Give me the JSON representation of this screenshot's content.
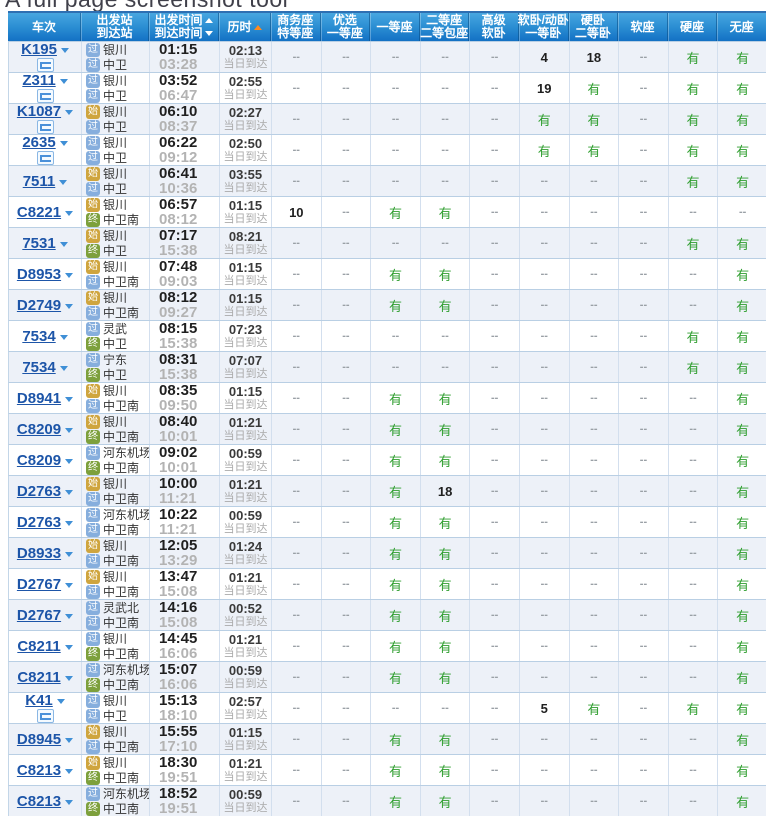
{
  "page_title": "A full page screenshot tool",
  "colors": {
    "header_blue_top": "#47a6e0",
    "header_blue_bottom": "#1371c4",
    "alt_row_bg": "#edf1f8",
    "row_border": "#b9cfe4",
    "train_link": "#1d55a8",
    "available_green": "#2f9e2f",
    "empty_gray": "#9aa0a6",
    "sort_arrow_orange": "#ff8a1e",
    "pass_icon_bg": "#86aedd",
    "origin_icon_bg": "#cfa53e",
    "terminal_icon_bg": "#7da03c"
  },
  "station_icon_legend": {
    "pass": "过",
    "origin": "始",
    "terminal": "终"
  },
  "table": {
    "columns": [
      {
        "key": "train",
        "lines": [
          "车次"
        ]
      },
      {
        "key": "stations",
        "lines": [
          "出发站",
          "到达站"
        ]
      },
      {
        "key": "times",
        "lines": [
          "出发时间",
          "到达时间"
        ],
        "arrows": [
          "up",
          "down"
        ]
      },
      {
        "key": "duration",
        "lines": [
          "历时"
        ],
        "arrows": [
          "up-active"
        ]
      },
      {
        "key": "business_seat",
        "lines": [
          "商务座",
          "特等座"
        ]
      },
      {
        "key": "premium_first_seat",
        "lines": [
          "优选",
          "一等座"
        ]
      },
      {
        "key": "first_seat",
        "lines": [
          "一等座"
        ]
      },
      {
        "key": "second_seat",
        "lines": [
          "二等座",
          "二等包座"
        ]
      },
      {
        "key": "deluxe_soft_sleeper",
        "lines": [
          "高级",
          "软卧"
        ]
      },
      {
        "key": "soft_sleeper",
        "lines": [
          "软卧/动卧",
          "一等卧"
        ]
      },
      {
        "key": "hard_sleeper",
        "lines": [
          "硬卧",
          "二等卧"
        ]
      },
      {
        "key": "soft_seat",
        "lines": [
          "软座"
        ]
      },
      {
        "key": "hard_seat",
        "lines": [
          "硬座"
        ]
      },
      {
        "key": "no_seat",
        "lines": [
          "无座"
        ]
      }
    ],
    "rows": [
      {
        "train": "K195",
        "has_berth_badge": true,
        "from": {
          "type": "pass",
          "badge": "过",
          "name": "银川"
        },
        "to": {
          "type": "pass",
          "badge": "过",
          "name": "中卫"
        },
        "depart": "01:15",
        "arrive": "03:28",
        "duration": "02:13",
        "arrival_note": "当日到达",
        "seats": [
          "--",
          "--",
          "--",
          "--",
          "--",
          "4",
          "18",
          "--",
          "有",
          "有"
        ]
      },
      {
        "train": "Z311",
        "has_berth_badge": true,
        "from": {
          "type": "pass",
          "badge": "过",
          "name": "银川"
        },
        "to": {
          "type": "pass",
          "badge": "过",
          "name": "中卫"
        },
        "depart": "03:52",
        "arrive": "06:47",
        "duration": "02:55",
        "arrival_note": "当日到达",
        "seats": [
          "--",
          "--",
          "--",
          "--",
          "--",
          "19",
          "有",
          "--",
          "有",
          "有"
        ]
      },
      {
        "train": "K1087",
        "has_berth_badge": true,
        "from": {
          "type": "origin",
          "badge": "始",
          "name": "银川"
        },
        "to": {
          "type": "pass",
          "badge": "过",
          "name": "中卫"
        },
        "depart": "06:10",
        "arrive": "08:37",
        "duration": "02:27",
        "arrival_note": "当日到达",
        "seats": [
          "--",
          "--",
          "--",
          "--",
          "--",
          "有",
          "有",
          "--",
          "有",
          "有"
        ]
      },
      {
        "train": "2635",
        "has_berth_badge": true,
        "from": {
          "type": "pass",
          "badge": "过",
          "name": "银川"
        },
        "to": {
          "type": "pass",
          "badge": "过",
          "name": "中卫"
        },
        "depart": "06:22",
        "arrive": "09:12",
        "duration": "02:50",
        "arrival_note": "当日到达",
        "seats": [
          "--",
          "--",
          "--",
          "--",
          "--",
          "有",
          "有",
          "--",
          "有",
          "有"
        ]
      },
      {
        "train": "7511",
        "has_berth_badge": false,
        "from": {
          "type": "origin",
          "badge": "始",
          "name": "银川"
        },
        "to": {
          "type": "pass",
          "badge": "过",
          "name": "中卫"
        },
        "depart": "06:41",
        "arrive": "10:36",
        "duration": "03:55",
        "arrival_note": "当日到达",
        "seats": [
          "--",
          "--",
          "--",
          "--",
          "--",
          "--",
          "--",
          "--",
          "有",
          "有"
        ]
      },
      {
        "train": "C8221",
        "has_berth_badge": false,
        "from": {
          "type": "origin",
          "badge": "始",
          "name": "银川"
        },
        "to": {
          "type": "terminal",
          "badge": "终",
          "name": "中卫南"
        },
        "depart": "06:57",
        "arrive": "08:12",
        "duration": "01:15",
        "arrival_note": "当日到达",
        "seats": [
          "10",
          "--",
          "有",
          "有",
          "--",
          "--",
          "--",
          "--",
          "--",
          "--"
        ]
      },
      {
        "train": "7531",
        "has_berth_badge": false,
        "from": {
          "type": "origin",
          "badge": "始",
          "name": "银川"
        },
        "to": {
          "type": "terminal",
          "badge": "终",
          "name": "中卫"
        },
        "depart": "07:17",
        "arrive": "15:38",
        "duration": "08:21",
        "arrival_note": "当日到达",
        "seats": [
          "--",
          "--",
          "--",
          "--",
          "--",
          "--",
          "--",
          "--",
          "有",
          "有"
        ]
      },
      {
        "train": "D8953",
        "has_berth_badge": false,
        "from": {
          "type": "origin",
          "badge": "始",
          "name": "银川"
        },
        "to": {
          "type": "pass",
          "badge": "过",
          "name": "中卫南"
        },
        "depart": "07:48",
        "arrive": "09:03",
        "duration": "01:15",
        "arrival_note": "当日到达",
        "seats": [
          "--",
          "--",
          "有",
          "有",
          "--",
          "--",
          "--",
          "--",
          "--",
          "有"
        ]
      },
      {
        "train": "D2749",
        "has_berth_badge": false,
        "from": {
          "type": "origin",
          "badge": "始",
          "name": "银川"
        },
        "to": {
          "type": "pass",
          "badge": "过",
          "name": "中卫南"
        },
        "depart": "08:12",
        "arrive": "09:27",
        "duration": "01:15",
        "arrival_note": "当日到达",
        "seats": [
          "--",
          "--",
          "有",
          "有",
          "--",
          "--",
          "--",
          "--",
          "--",
          "有"
        ]
      },
      {
        "train": "7534",
        "has_berth_badge": false,
        "from": {
          "type": "pass",
          "badge": "过",
          "name": "灵武"
        },
        "to": {
          "type": "terminal",
          "badge": "终",
          "name": "中卫"
        },
        "depart": "08:15",
        "arrive": "15:38",
        "duration": "07:23",
        "arrival_note": "当日到达",
        "seats": [
          "--",
          "--",
          "--",
          "--",
          "--",
          "--",
          "--",
          "--",
          "有",
          "有"
        ]
      },
      {
        "train": "7534",
        "has_berth_badge": false,
        "from": {
          "type": "pass",
          "badge": "过",
          "name": "宁东"
        },
        "to": {
          "type": "terminal",
          "badge": "终",
          "name": "中卫"
        },
        "depart": "08:31",
        "arrive": "15:38",
        "duration": "07:07",
        "arrival_note": "当日到达",
        "seats": [
          "--",
          "--",
          "--",
          "--",
          "--",
          "--",
          "--",
          "--",
          "有",
          "有"
        ]
      },
      {
        "train": "D8941",
        "has_berth_badge": false,
        "from": {
          "type": "origin",
          "badge": "始",
          "name": "银川"
        },
        "to": {
          "type": "pass",
          "badge": "过",
          "name": "中卫南"
        },
        "depart": "08:35",
        "arrive": "09:50",
        "duration": "01:15",
        "arrival_note": "当日到达",
        "seats": [
          "--",
          "--",
          "有",
          "有",
          "--",
          "--",
          "--",
          "--",
          "--",
          "有"
        ]
      },
      {
        "train": "C8209",
        "has_berth_badge": false,
        "from": {
          "type": "origin",
          "badge": "始",
          "name": "银川"
        },
        "to": {
          "type": "terminal",
          "badge": "终",
          "name": "中卫南"
        },
        "depart": "08:40",
        "arrive": "10:01",
        "duration": "01:21",
        "arrival_note": "当日到达",
        "seats": [
          "--",
          "--",
          "有",
          "有",
          "--",
          "--",
          "--",
          "--",
          "--",
          "有"
        ]
      },
      {
        "train": "C8209",
        "has_berth_badge": false,
        "from": {
          "type": "pass",
          "badge": "过",
          "name": "河东机场"
        },
        "to": {
          "type": "terminal",
          "badge": "终",
          "name": "中卫南"
        },
        "depart": "09:02",
        "arrive": "10:01",
        "duration": "00:59",
        "arrival_note": "当日到达",
        "seats": [
          "--",
          "--",
          "有",
          "有",
          "--",
          "--",
          "--",
          "--",
          "--",
          "有"
        ]
      },
      {
        "train": "D2763",
        "has_berth_badge": false,
        "from": {
          "type": "origin",
          "badge": "始",
          "name": "银川"
        },
        "to": {
          "type": "pass",
          "badge": "过",
          "name": "中卫南"
        },
        "depart": "10:00",
        "arrive": "11:21",
        "duration": "01:21",
        "arrival_note": "当日到达",
        "seats": [
          "--",
          "--",
          "有",
          "18",
          "--",
          "--",
          "--",
          "--",
          "--",
          "有"
        ]
      },
      {
        "train": "D2763",
        "has_berth_badge": false,
        "from": {
          "type": "pass",
          "badge": "过",
          "name": "河东机场"
        },
        "to": {
          "type": "pass",
          "badge": "过",
          "name": "中卫南"
        },
        "depart": "10:22",
        "arrive": "11:21",
        "duration": "00:59",
        "arrival_note": "当日到达",
        "seats": [
          "--",
          "--",
          "有",
          "有",
          "--",
          "--",
          "--",
          "--",
          "--",
          "有"
        ]
      },
      {
        "train": "D8933",
        "has_berth_badge": false,
        "from": {
          "type": "origin",
          "badge": "始",
          "name": "银川"
        },
        "to": {
          "type": "pass",
          "badge": "过",
          "name": "中卫南"
        },
        "depart": "12:05",
        "arrive": "13:29",
        "duration": "01:24",
        "arrival_note": "当日到达",
        "seats": [
          "--",
          "--",
          "有",
          "有",
          "--",
          "--",
          "--",
          "--",
          "--",
          "有"
        ]
      },
      {
        "train": "D2767",
        "has_berth_badge": false,
        "from": {
          "type": "origin",
          "badge": "始",
          "name": "银川"
        },
        "to": {
          "type": "pass",
          "badge": "过",
          "name": "中卫南"
        },
        "depart": "13:47",
        "arrive": "15:08",
        "duration": "01:21",
        "arrival_note": "当日到达",
        "seats": [
          "--",
          "--",
          "有",
          "有",
          "--",
          "--",
          "--",
          "--",
          "--",
          "有"
        ]
      },
      {
        "train": "D2767",
        "has_berth_badge": false,
        "from": {
          "type": "pass",
          "badge": "过",
          "name": "灵武北"
        },
        "to": {
          "type": "pass",
          "badge": "过",
          "name": "中卫南"
        },
        "depart": "14:16",
        "arrive": "15:08",
        "duration": "00:52",
        "arrival_note": "当日到达",
        "seats": [
          "--",
          "--",
          "有",
          "有",
          "--",
          "--",
          "--",
          "--",
          "--",
          "有"
        ]
      },
      {
        "train": "C8211",
        "has_berth_badge": false,
        "from": {
          "type": "pass",
          "badge": "过",
          "name": "银川"
        },
        "to": {
          "type": "terminal",
          "badge": "终",
          "name": "中卫南"
        },
        "depart": "14:45",
        "arrive": "16:06",
        "duration": "01:21",
        "arrival_note": "当日到达",
        "seats": [
          "--",
          "--",
          "有",
          "有",
          "--",
          "--",
          "--",
          "--",
          "--",
          "有"
        ]
      },
      {
        "train": "C8211",
        "has_berth_badge": false,
        "from": {
          "type": "pass",
          "badge": "过",
          "name": "河东机场"
        },
        "to": {
          "type": "terminal",
          "badge": "终",
          "name": "中卫南"
        },
        "depart": "15:07",
        "arrive": "16:06",
        "duration": "00:59",
        "arrival_note": "当日到达",
        "seats": [
          "--",
          "--",
          "有",
          "有",
          "--",
          "--",
          "--",
          "--",
          "--",
          "有"
        ]
      },
      {
        "train": "K41",
        "has_berth_badge": true,
        "from": {
          "type": "pass",
          "badge": "过",
          "name": "银川"
        },
        "to": {
          "type": "pass",
          "badge": "过",
          "name": "中卫"
        },
        "depart": "15:13",
        "arrive": "18:10",
        "duration": "02:57",
        "arrival_note": "当日到达",
        "seats": [
          "--",
          "--",
          "--",
          "--",
          "--",
          "5",
          "有",
          "--",
          "有",
          "有"
        ]
      },
      {
        "train": "D8945",
        "has_berth_badge": false,
        "from": {
          "type": "origin",
          "badge": "始",
          "name": "银川"
        },
        "to": {
          "type": "pass",
          "badge": "过",
          "name": "中卫南"
        },
        "depart": "15:55",
        "arrive": "17:10",
        "duration": "01:15",
        "arrival_note": "当日到达",
        "seats": [
          "--",
          "--",
          "有",
          "有",
          "--",
          "--",
          "--",
          "--",
          "--",
          "有"
        ]
      },
      {
        "train": "C8213",
        "has_berth_badge": false,
        "from": {
          "type": "origin",
          "badge": "始",
          "name": "银川"
        },
        "to": {
          "type": "terminal",
          "badge": "终",
          "name": "中卫南"
        },
        "depart": "18:30",
        "arrive": "19:51",
        "duration": "01:21",
        "arrival_note": "当日到达",
        "seats": [
          "--",
          "--",
          "有",
          "有",
          "--",
          "--",
          "--",
          "--",
          "--",
          "有"
        ]
      },
      {
        "train": "C8213",
        "has_berth_badge": false,
        "from": {
          "type": "pass",
          "badge": "过",
          "name": "河东机场"
        },
        "to": {
          "type": "terminal",
          "badge": "终",
          "name": "中卫南"
        },
        "depart": "18:52",
        "arrive": "19:51",
        "duration": "00:59",
        "arrival_note": "当日到达",
        "seats": [
          "--",
          "--",
          "有",
          "有",
          "--",
          "--",
          "--",
          "--",
          "--",
          "有"
        ]
      }
    ]
  }
}
